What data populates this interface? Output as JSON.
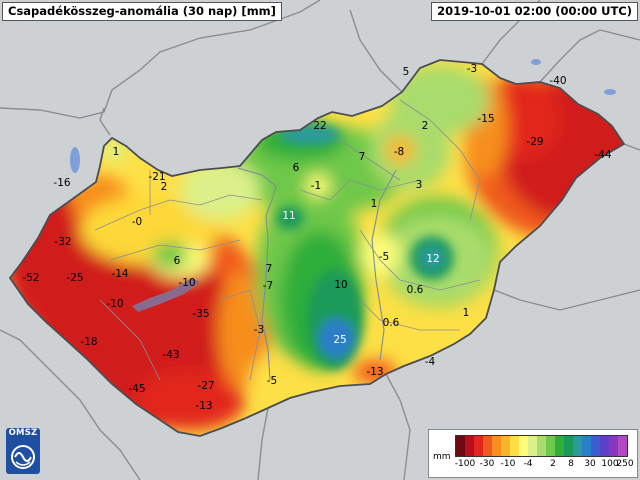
{
  "title": "Csapadékösszeg-anomália (30 nap) [mm]",
  "timestamp": "2019-10-01 02:00 (00:00 UTC)",
  "logo_text": "OMSZ",
  "legend": {
    "unit": "mm",
    "colors": [
      "#6e0a12",
      "#b80f1c",
      "#e2261f",
      "#f05a1e",
      "#f78e1e",
      "#fbb52a",
      "#fde046",
      "#fdfd7a",
      "#dbf08a",
      "#a9dc6c",
      "#6ec84a",
      "#2fae3a",
      "#1a9a5a",
      "#2a9a9c",
      "#2b7ec8",
      "#3b5fd0",
      "#5e3fc8",
      "#8a37c0",
      "#b04ac2"
    ],
    "tick_labels": [
      "-100",
      "-30",
      "-10",
      "-4",
      "2",
      "8",
      "30",
      "100",
      "250"
    ]
  },
  "values": [
    {
      "text": "-40"
    },
    {
      "text": "-3"
    },
    {
      "text": "5"
    },
    {
      "text": "-15"
    },
    {
      "text": "-29"
    },
    {
      "text": "-44"
    },
    {
      "text": "22"
    },
    {
      "text": "2"
    },
    {
      "text": "-8"
    },
    {
      "text": "7"
    },
    {
      "text": "1"
    },
    {
      "text": "6"
    },
    {
      "text": "-21"
    },
    {
      "text": "2"
    },
    {
      "text": "-16"
    },
    {
      "text": "-1"
    },
    {
      "text": "3"
    },
    {
      "text": "1"
    },
    {
      "text": "11"
    },
    {
      "text": "-0"
    },
    {
      "text": "-32"
    },
    {
      "text": "-5"
    },
    {
      "text": "12"
    },
    {
      "text": "6"
    },
    {
      "text": "-14"
    },
    {
      "text": "-25"
    },
    {
      "text": "-52"
    },
    {
      "text": "7"
    },
    {
      "text": "10"
    },
    {
      "text": "0.6"
    },
    {
      "text": "-10"
    },
    {
      "text": "-10"
    },
    {
      "text": "-7"
    },
    {
      "text": "-35"
    },
    {
      "text": "1"
    },
    {
      "text": "0.6"
    },
    {
      "text": "-18"
    },
    {
      "text": "-3"
    },
    {
      "text": "25"
    },
    {
      "text": "-43"
    },
    {
      "text": "-4"
    },
    {
      "text": "-13"
    },
    {
      "text": "-5"
    },
    {
      "text": "-45"
    },
    {
      "text": "-27"
    },
    {
      "text": "-13"
    }
  ]
}
